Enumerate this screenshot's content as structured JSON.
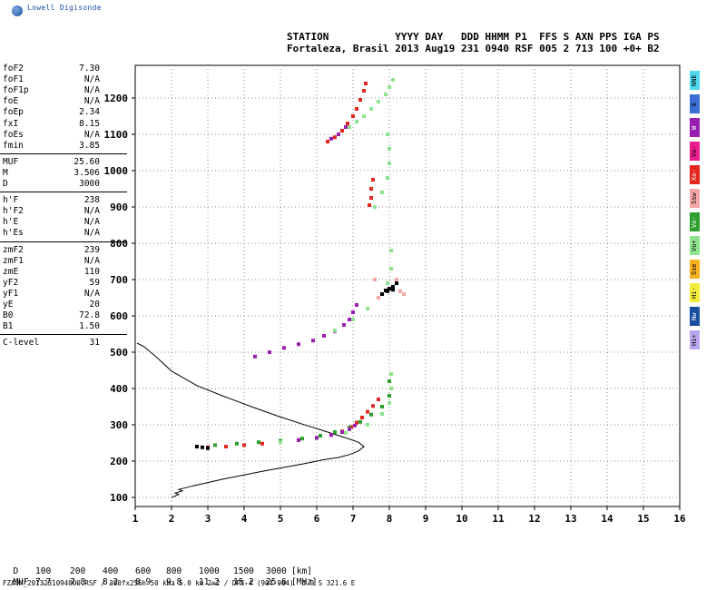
{
  "logo_text": "Lowell Digisonde",
  "header": {
    "line1": "STATION           YYYY DAY   DDD HHMM P1  FFS S AXN PPS IGA PS",
    "line2": "Fortaleza, Brasil 2013 Aug19 231 0940 RSF 005 2 713 100 +0+ B2"
  },
  "params": [
    {
      "label": "foF2",
      "value": "7.30"
    },
    {
      "label": "foF1",
      "value": "N/A"
    },
    {
      "label": "foF1p",
      "value": "N/A"
    },
    {
      "label": "foE",
      "value": "N/A"
    },
    {
      "label": "foEp",
      "value": "2.34"
    },
    {
      "label": "fxI",
      "value": "8.15"
    },
    {
      "label": "foEs",
      "value": "N/A"
    },
    {
      "label": "fmin",
      "value": "3.85"
    },
    {
      "label": "MUF",
      "value": "25.60"
    },
    {
      "label": "M",
      "value": "3.506"
    },
    {
      "label": "D",
      "value": "3000"
    },
    {
      "label": "h'F",
      "value": "238"
    },
    {
      "label": "h'F2",
      "value": "N/A"
    },
    {
      "label": "h'E",
      "value": "N/A"
    },
    {
      "label": "h'Es",
      "value": "N/A"
    },
    {
      "label": "zmF2",
      "value": "239"
    },
    {
      "label": "zmF1",
      "value": "N/A"
    },
    {
      "label": "zmE",
      "value": "110"
    },
    {
      "label": "yF2",
      "value": "59"
    },
    {
      "label": "yF1",
      "value": "N/A"
    },
    {
      "label": "yE",
      "value": "20"
    },
    {
      "label": "B0",
      "value": "72.8"
    },
    {
      "label": "B1",
      "value": "1.50"
    },
    {
      "label": "C-level",
      "value": "31"
    }
  ],
  "legend": [
    {
      "label": "NNE",
      "color": "#4dd9ee"
    },
    {
      "label": "E",
      "color": "#3b6fd6"
    },
    {
      "label": "W",
      "color": "#9a1fb0"
    },
    {
      "label": "Vo-",
      "color": "#e91e8c"
    },
    {
      "label": "Xo-",
      "color": "#e3261f"
    },
    {
      "label": "Ssw",
      "color": "#f4a6a6"
    },
    {
      "label": "Vo-",
      "color": "#2e9e2e"
    },
    {
      "label": "Vo+",
      "color": "#8fe38f"
    },
    {
      "label": "Sse",
      "color": "#f6b21f"
    },
    {
      "label": "Hi-",
      "color": "#f4ee3a"
    },
    {
      "label": "Nw",
      "color": "#1a4fa0"
    },
    {
      "label": "Hi+",
      "color": "#b9a6ee"
    }
  ],
  "muf_table": {
    "d_label": "D",
    "d_values": [
      "100",
      "200",
      "400",
      "600",
      "800",
      "1000",
      "1500",
      "3000"
    ],
    "d_unit": "[km]",
    "muf_label": "MUF",
    "muf_values": [
      "7.7",
      "7.8",
      "8.2",
      "8.9",
      "9.8",
      "11.2",
      "15.2",
      "25.6"
    ],
    "muf_unit": "[MHz]"
  },
  "footer": "FZA0M_2013231094000.RSF / 300fx256h 50 kHz 5.0 km 2x2 / DPS-4 (904-904)  3.9 S 321.6 E",
  "chart_data": {
    "type": "scatter",
    "xlim": [
      1,
      16
    ],
    "ylim": [
      75,
      1290
    ],
    "xticks": [
      "1",
      "2",
      "3",
      "4",
      "5",
      "6",
      "7",
      "8",
      "9",
      "10",
      "11",
      "12",
      "13",
      "14",
      "15",
      "16"
    ],
    "yticks": [
      "100",
      "200",
      "300",
      "400",
      "500",
      "600",
      "700",
      "800",
      "900",
      "1000",
      "1100",
      "1200"
    ],
    "grid": "dotted",
    "profile_line": [
      [
        2.0,
        100
      ],
      [
        2.2,
        108
      ],
      [
        2.1,
        112
      ],
      [
        2.3,
        118
      ],
      [
        2.2,
        122
      ],
      [
        2.6,
        132
      ],
      [
        3.4,
        150
      ],
      [
        4.5,
        172
      ],
      [
        5.6,
        192
      ],
      [
        6.2,
        204
      ],
      [
        6.6,
        210
      ],
      [
        6.9,
        218
      ],
      [
        7.15,
        228
      ],
      [
        7.3,
        240
      ],
      [
        7.15,
        252
      ],
      [
        6.8,
        264
      ],
      [
        6.3,
        280
      ],
      [
        5.6,
        302
      ],
      [
        4.9,
        325
      ],
      [
        4.2,
        350
      ],
      [
        3.4,
        380
      ],
      [
        2.7,
        408
      ],
      [
        2.0,
        448
      ],
      [
        1.6,
        485
      ],
      [
        1.25,
        515
      ],
      [
        1.05,
        525
      ]
    ],
    "echo_groups": [
      {
        "name": "F trace low",
        "color": "#e3261f",
        "points": [
          [
            3.0,
            238
          ],
          [
            3.5,
            240
          ],
          [
            4.0,
            244
          ],
          [
            4.5,
            248
          ],
          [
            5.0,
            252
          ],
          [
            5.5,
            258
          ],
          [
            6.0,
            264
          ],
          [
            6.4,
            272
          ],
          [
            6.7,
            282
          ],
          [
            6.95,
            294
          ],
          [
            7.1,
            306
          ],
          [
            7.25,
            320
          ],
          [
            7.4,
            336
          ],
          [
            7.55,
            352
          ],
          [
            7.7,
            370
          ]
        ]
      },
      {
        "name": "F trace green",
        "color": "#2e9e2e",
        "points": [
          [
            3.2,
            244
          ],
          [
            3.8,
            248
          ],
          [
            4.4,
            252
          ],
          [
            5.0,
            256
          ],
          [
            5.6,
            262
          ],
          [
            6.1,
            270
          ],
          [
            6.5,
            280
          ],
          [
            6.9,
            292
          ],
          [
            7.2,
            308
          ],
          [
            7.5,
            328
          ],
          [
            7.8,
            350
          ],
          [
            8.0,
            380
          ],
          [
            8.0,
            420
          ]
        ]
      },
      {
        "name": "F trace light",
        "color": "#8fe38f",
        "points": [
          [
            5.0,
            252
          ],
          [
            6.0,
            262
          ],
          [
            6.8,
            278
          ],
          [
            7.4,
            300
          ],
          [
            7.8,
            330
          ],
          [
            8.0,
            360
          ],
          [
            8.05,
            400
          ],
          [
            8.05,
            440
          ]
        ]
      },
      {
        "name": "F trace magenta",
        "color": "#9a1fb0",
        "points": [
          [
            5.5,
            258
          ],
          [
            6.0,
            264
          ],
          [
            6.4,
            272
          ],
          [
            6.7,
            280
          ],
          [
            6.9,
            288
          ],
          [
            7.05,
            298
          ]
        ]
      },
      {
        "name": "F trace black",
        "color": "#000000",
        "points": [
          [
            2.7,
            240
          ],
          [
            2.85,
            238
          ],
          [
            3.0,
            236
          ]
        ]
      },
      {
        "name": "Second hop",
        "color": "#9a1fb0",
        "points": [
          [
            4.3,
            488
          ],
          [
            4.7,
            500
          ],
          [
            5.1,
            512
          ],
          [
            5.5,
            522
          ],
          [
            5.9,
            532
          ],
          [
            6.2,
            545
          ],
          [
            6.5,
            558
          ],
          [
            6.75,
            575
          ],
          [
            6.9,
            590
          ],
          [
            7.0,
            610
          ],
          [
            7.1,
            630
          ]
        ]
      },
      {
        "name": "Second hop green",
        "color": "#8fe38f",
        "points": [
          [
            6.5,
            560
          ],
          [
            7.0,
            590
          ],
          [
            7.4,
            620
          ],
          [
            7.7,
            650
          ],
          [
            7.95,
            690
          ],
          [
            8.05,
            730
          ],
          [
            8.05,
            780
          ]
        ]
      },
      {
        "name": "Cluster 680",
        "color": "#000000",
        "points": [
          [
            7.8,
            660
          ],
          [
            7.9,
            670
          ],
          [
            8.0,
            675
          ],
          [
            8.1,
            680
          ],
          [
            8.2,
            690
          ],
          [
            8.1,
            672
          ],
          [
            7.95,
            668
          ]
        ]
      },
      {
        "name": "Cluster 680 pink",
        "color": "#f4a6a6",
        "points": [
          [
            7.7,
            650
          ],
          [
            8.3,
            668
          ],
          [
            8.4,
            660
          ],
          [
            8.2,
            700
          ],
          [
            7.6,
            700
          ]
        ]
      },
      {
        "name": "Mid trace",
        "color": "#e3261f",
        "points": [
          [
            7.45,
            905
          ],
          [
            7.5,
            925
          ],
          [
            7.5,
            950
          ],
          [
            7.55,
            975
          ]
        ]
      },
      {
        "name": "Mid trace green",
        "color": "#8fe38f",
        "points": [
          [
            7.6,
            900
          ],
          [
            7.8,
            940
          ],
          [
            7.95,
            980
          ],
          [
            8.0,
            1020
          ],
          [
            8.0,
            1060
          ],
          [
            7.95,
            1100
          ]
        ]
      },
      {
        "name": "Top trace",
        "color": "#e3261f",
        "points": [
          [
            6.3,
            1080
          ],
          [
            6.5,
            1092
          ],
          [
            6.7,
            1110
          ],
          [
            6.85,
            1130
          ],
          [
            7.0,
            1150
          ],
          [
            7.1,
            1170
          ],
          [
            7.2,
            1195
          ],
          [
            7.3,
            1220
          ],
          [
            7.35,
            1240
          ]
        ]
      },
      {
        "name": "Top trace green",
        "color": "#8fe38f",
        "points": [
          [
            6.9,
            1120
          ],
          [
            7.1,
            1135
          ],
          [
            7.3,
            1150
          ],
          [
            7.5,
            1170
          ],
          [
            7.7,
            1190
          ],
          [
            7.9,
            1210
          ],
          [
            8.0,
            1230
          ],
          [
            8.1,
            1250
          ]
        ]
      },
      {
        "name": "Top trace magenta",
        "color": "#9a1fb0",
        "points": [
          [
            6.4,
            1088
          ],
          [
            6.6,
            1100
          ],
          [
            6.8,
            1120
          ]
        ]
      }
    ]
  }
}
